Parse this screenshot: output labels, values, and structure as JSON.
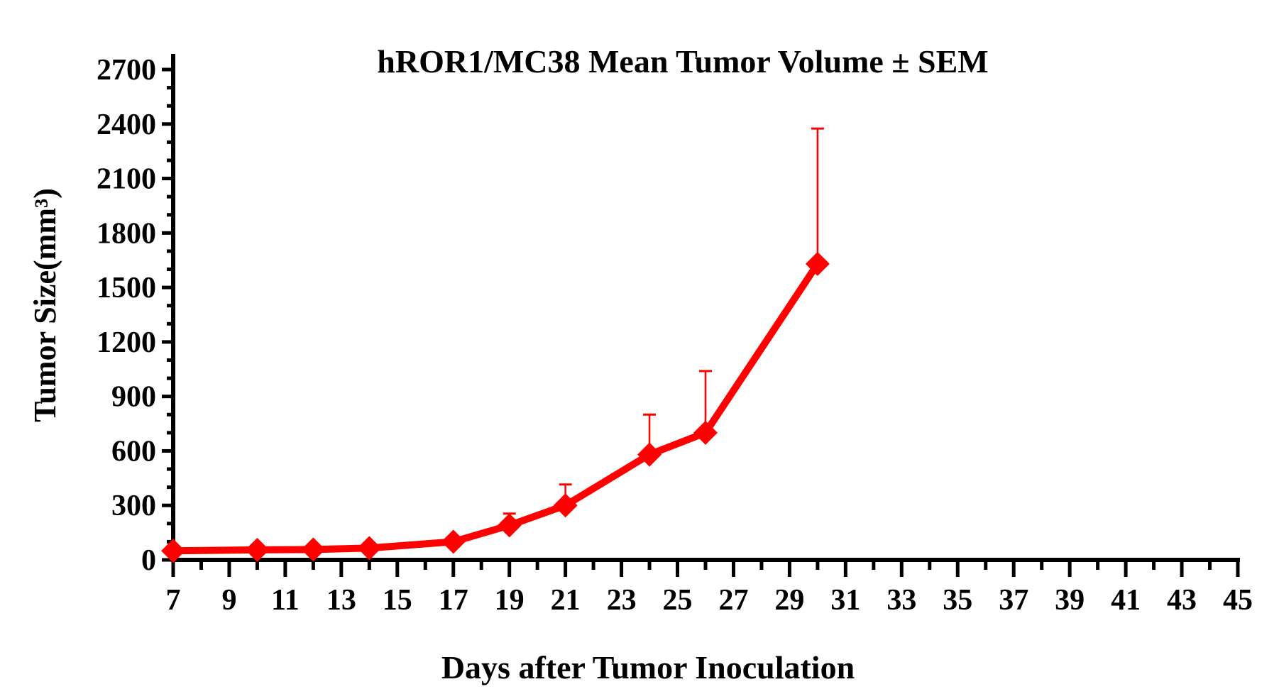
{
  "chart_data": {
    "type": "line",
    "title": "hROR1/MC38 Mean Tumor Volume ± SEM",
    "xlabel": "Days after Tumor Inoculation",
    "ylabel": "Tumor Size(mm³)",
    "xlim": [
      7,
      45
    ],
    "ylim": [
      0,
      2700
    ],
    "x_ticks": [
      7,
      9,
      11,
      13,
      15,
      17,
      19,
      21,
      23,
      25,
      27,
      29,
      31,
      33,
      35,
      37,
      39,
      41,
      43,
      45
    ],
    "y_ticks": [
      0,
      300,
      600,
      900,
      1200,
      1500,
      1800,
      2100,
      2400,
      2700
    ],
    "grid": false,
    "legend": "none",
    "series": [
      {
        "color": "#ff0000",
        "marker": "diamond",
        "x": [
          7,
          10,
          12,
          14,
          17,
          19,
          21,
          24,
          26,
          30
        ],
        "y": [
          50,
          55,
          57,
          65,
          100,
          190,
          300,
          580,
          700,
          1630
        ],
        "error_upper": [
          52,
          58,
          60,
          68,
          105,
          255,
          415,
          800,
          1040,
          2375
        ]
      }
    ]
  }
}
